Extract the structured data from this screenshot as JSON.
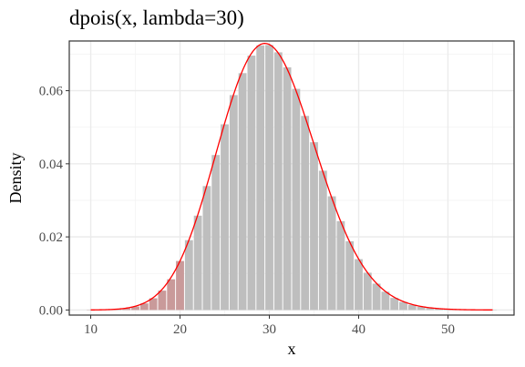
{
  "chart_data": {
    "type": "bar",
    "title": "dpois(x, lambda=30)",
    "xlabel": "x",
    "ylabel": "Density",
    "xlim": [
      7.6,
      57.4
    ],
    "ylim": [
      -0.0014,
      0.0736
    ],
    "grid": true,
    "x_ticks": [
      10,
      20,
      30,
      40,
      50
    ],
    "y_ticks": [
      0.0,
      0.02,
      0.04,
      0.06
    ],
    "x_tick_labels": [
      "10",
      "20",
      "30",
      "40",
      "50"
    ],
    "y_tick_labels": [
      "0.00",
      "0.02",
      "0.04",
      "0.06"
    ],
    "bars": {
      "x": [
        10,
        11,
        12,
        13,
        14,
        15,
        16,
        17,
        18,
        19,
        20,
        21,
        22,
        23,
        24,
        25,
        26,
        27,
        28,
        29,
        30,
        31,
        32,
        33,
        34,
        35,
        36,
        37,
        38,
        39,
        40,
        41,
        42,
        43,
        44,
        45,
        46,
        47,
        48,
        49,
        50,
        51,
        52,
        53,
        54,
        55
      ],
      "values": [
        1e-05,
        4e-05,
        0.0001,
        0.00022,
        0.00048,
        0.00095,
        0.0018,
        0.0032,
        0.0053,
        0.0084,
        0.0134,
        0.0191,
        0.0258,
        0.0339,
        0.0424,
        0.0508,
        0.0588,
        0.0648,
        0.0696,
        0.0724,
        0.0725,
        0.0705,
        0.0664,
        0.0605,
        0.0531,
        0.0459,
        0.0381,
        0.0311,
        0.0243,
        0.0188,
        0.0139,
        0.0102,
        0.0072,
        0.005,
        0.0033,
        0.0022,
        0.0014,
        0.0009,
        0.00055,
        0.00034,
        0.0002,
        0.00012,
        7e-05,
        4e-05,
        2e-05,
        1e-05
      ],
      "highlight_max_x": 20,
      "color": "#bebebe",
      "highlight_color": "#c99a9a"
    },
    "curve": {
      "lambda": 30,
      "x_range": [
        10,
        55
      ],
      "color": "#ff0000"
    }
  }
}
